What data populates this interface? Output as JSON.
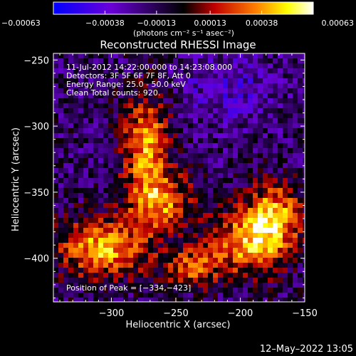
{
  "chart_data": {
    "type": "heatmap",
    "title": "Reconstructed RHESSI Image",
    "xlabel": "Heliocentric X (arcsec)",
    "ylabel": "Heliocentric Y (arcsec)",
    "xlim": [
      -345,
      -150
    ],
    "ylim": [
      -433,
      -245
    ],
    "x_ticks": [
      -300,
      -250,
      -200,
      -150
    ],
    "x_tick_labels": [
      "−300",
      "−250",
      "−200",
      "−150"
    ],
    "y_ticks": [
      -250,
      -300,
      -350,
      -400
    ],
    "y_tick_labels": [
      "−250",
      "−300",
      "−350",
      "−400"
    ],
    "colorbar": {
      "range": [
        -0.00063,
        0.00063
      ],
      "ticks": [
        -0.00063,
        -0.00038,
        -0.00013,
        0.00013,
        0.00038,
        0.00063
      ],
      "tick_labels": [
        "−0.00063",
        "−0.00038",
        "−0.00013",
        "0.00013",
        "0.00038",
        "0.00063"
      ],
      "unit_label": "(photons cm⁻² s⁻¹ asec⁻²)",
      "colormap": [
        "#0000ff",
        "#6a00d8",
        "#000000",
        "#c00000",
        "#ff8000",
        "#ffff00",
        "#ffffff"
      ]
    },
    "annotations": [
      "11-Jul-2012 14:22:00.000 to 14:23:08.000",
      "Detectors: 3F 5F 6F 7F 8F, Att 0",
      "Energy Range: 25.0 - 50.0 keV",
      "Clean    Total counts: 920."
    ],
    "peak_label": "Position of Peak = [−334,−423]",
    "peak_position": [
      -334,
      -423
    ],
    "grid": false
  },
  "footer": {
    "timestamp": "12–May–2022 13:05"
  }
}
